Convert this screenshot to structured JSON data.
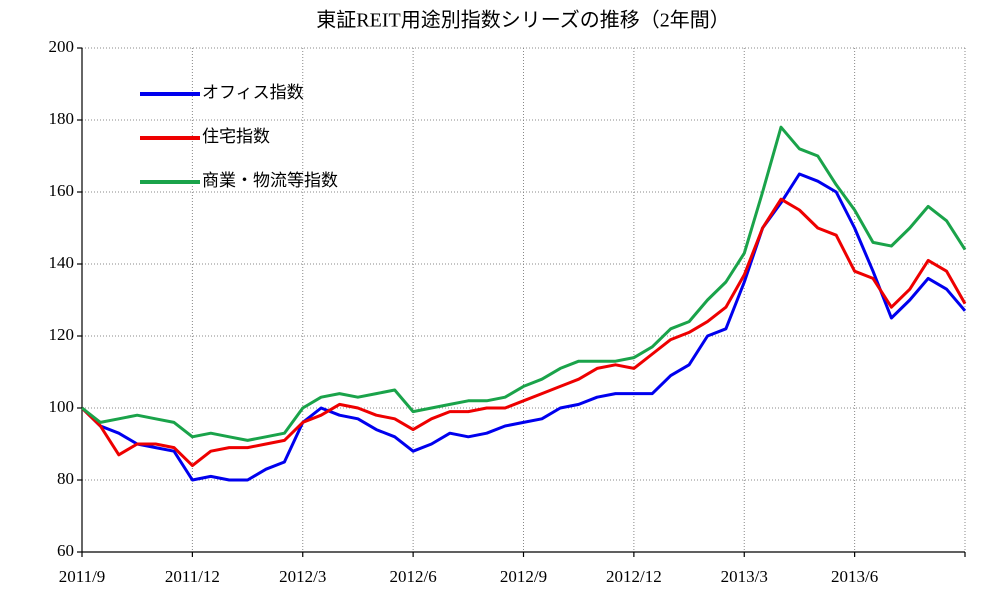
{
  "chart_data": {
    "type": "line",
    "title": "東証REIT用途別指数シリーズの推移（2年間）",
    "x": [
      0,
      0.5,
      1,
      1.5,
      2,
      2.5,
      3,
      3.5,
      4,
      4.5,
      5,
      5.5,
      6,
      6.5,
      7,
      7.5,
      8,
      8.5,
      9,
      9.5,
      10,
      10.5,
      11,
      11.5,
      12,
      12.5,
      13,
      13.5,
      14,
      14.5,
      15,
      15.5,
      16,
      16.5,
      17,
      17.5,
      18,
      18.5,
      19,
      19.5,
      20,
      20.5,
      21,
      21.5,
      22,
      22.5,
      23,
      23.5,
      24
    ],
    "xlim": [
      0,
      24
    ],
    "xticks": [
      {
        "value": 0,
        "label": "2011/9"
      },
      {
        "value": 3,
        "label": "2011/12"
      },
      {
        "value": 6,
        "label": "2012/3"
      },
      {
        "value": 9,
        "label": "2012/6"
      },
      {
        "value": 12,
        "label": "2012/9"
      },
      {
        "value": 15,
        "label": "2012/12"
      },
      {
        "value": 18,
        "label": "2013/3"
      },
      {
        "value": 21,
        "label": "2013/6"
      },
      {
        "value": 24,
        "label": null
      }
    ],
    "ylim": [
      60,
      200
    ],
    "yticks": [
      60,
      80,
      100,
      120,
      140,
      160,
      180,
      200
    ],
    "grid": true,
    "legend": "upper-left",
    "series": [
      {
        "name": "オフィス指数",
        "color": "#0000ee",
        "values": [
          100,
          95,
          93,
          90,
          89,
          88,
          80,
          81,
          80,
          80,
          83,
          85,
          96,
          100,
          98,
          97,
          94,
          92,
          88,
          90,
          93,
          92,
          93,
          95,
          96,
          97,
          100,
          101,
          103,
          104,
          104,
          104,
          109,
          112,
          120,
          122,
          135,
          150,
          157,
          165,
          163,
          160,
          150,
          138,
          125,
          130,
          136,
          133,
          127
        ]
      },
      {
        "name": "住宅指数",
        "color": "#ee0000",
        "values": [
          100,
          95,
          87,
          90,
          90,
          89,
          84,
          88,
          89,
          89,
          90,
          91,
          96,
          98,
          101,
          100,
          98,
          97,
          94,
          97,
          99,
          99,
          100,
          100,
          102,
          104,
          106,
          108,
          111,
          112,
          111,
          115,
          119,
          121,
          124,
          128,
          137,
          150,
          158,
          155,
          150,
          148,
          138,
          136,
          128,
          133,
          141,
          138,
          129
        ]
      },
      {
        "name": "商業・物流等指数",
        "color": "#1aa34a",
        "values": [
          100,
          96,
          97,
          98,
          97,
          96,
          92,
          93,
          92,
          91,
          92,
          93,
          100,
          103,
          104,
          103,
          104,
          105,
          99,
          100,
          101,
          102,
          102,
          103,
          106,
          108,
          111,
          113,
          113,
          113,
          114,
          117,
          122,
          124,
          130,
          135,
          143,
          160,
          178,
          172,
          170,
          162,
          155,
          146,
          145,
          150,
          156,
          152,
          144
        ]
      }
    ]
  }
}
